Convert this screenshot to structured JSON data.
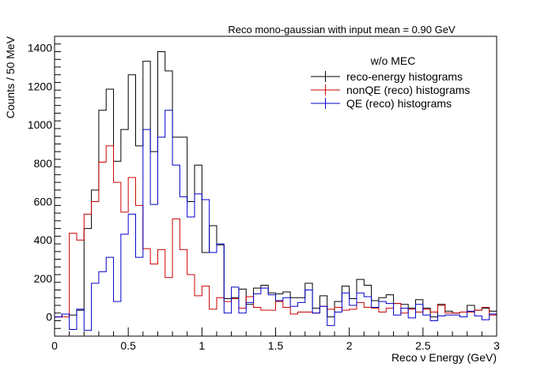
{
  "chart_data": {
    "type": "histogram",
    "title": "Reco mono-gaussian with input mean = 0.90 GeV",
    "xlabel": "Reco ν Energy (GeV)",
    "ylabel": "Counts / 50 MeV",
    "xlim": [
      0,
      3
    ],
    "ylim": [
      -100,
      1460
    ],
    "bin_width": 0.05,
    "xticks": [
      0,
      0.5,
      1,
      1.5,
      2,
      2.5,
      3
    ],
    "xtick_labels": [
      "0",
      "0.5",
      "1",
      "1.5",
      "2",
      "2.5",
      "3"
    ],
    "yticks": [
      0,
      200,
      400,
      600,
      800,
      1000,
      1200,
      1400
    ],
    "ytick_labels": [
      "0",
      "200",
      "400",
      "600",
      "800",
      "1000",
      "1200",
      "1400"
    ],
    "grid": false,
    "legend": {
      "title": "w/o MEC",
      "placement": "top-right"
    },
    "series": [
      {
        "name": "reco-energy histograms",
        "color": "#000000",
        "values": [
          0,
          15,
          10,
          35,
          460,
          660,
          1075,
          1185,
          810,
          975,
          1260,
          890,
          1330,
          860,
          1380,
          1280,
          935,
          935,
          600,
          790,
          335,
          475,
          375,
          95,
          100,
          145,
          65,
          150,
          165,
          125,
          120,
          130,
          100,
          100,
          175,
          45,
          110,
          0,
          80,
          160,
          95,
          195,
          165,
          85,
          100,
          115,
          70,
          65,
          45,
          90,
          45,
          0,
          65,
          30,
          20,
          25,
          60,
          35,
          45,
          30
        ]
      },
      {
        "name": "nonQE (reco) histograms",
        "color": "#cc0000",
        "values": [
          0,
          0,
          435,
          400,
          535,
          600,
          805,
          890,
          700,
          545,
          725,
          580,
          355,
          275,
          350,
          205,
          510,
          350,
          220,
          110,
          160,
          40,
          100,
          80,
          95,
          45,
          105,
          50,
          35,
          35,
          80,
          50,
          15,
          25,
          25,
          20,
          55,
          40,
          50,
          35,
          40,
          75,
          50,
          45,
          25,
          45,
          70,
          20,
          40,
          25,
          40,
          25,
          60,
          20,
          20,
          25,
          25,
          35,
          50,
          10
        ]
      },
      {
        "name": "QE (reco) histograms",
        "color": "#0000cc",
        "values": [
          0,
          15,
          -65,
          40,
          -70,
          175,
          235,
          310,
          80,
          430,
          535,
          310,
          975,
          585,
          935,
          1075,
          790,
          625,
          520,
          640,
          610,
          335,
          380,
          20,
          155,
          20,
          75,
          120,
          150,
          115,
          85,
          100,
          55,
          75,
          140,
          20,
          55,
          -45,
          25,
          125,
          60,
          125,
          105,
          50,
          80,
          70,
          10,
          45,
          -5,
          65,
          10,
          -20,
          5,
          10,
          10,
          0,
          30,
          5,
          -15,
          15
        ]
      }
    ]
  }
}
